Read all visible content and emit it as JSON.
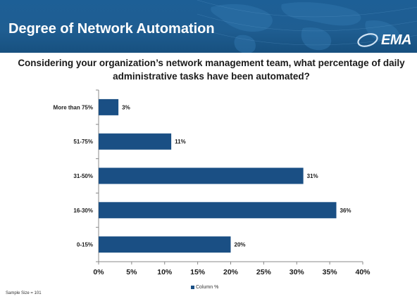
{
  "slide": {
    "title": "Degree of Network Automation",
    "logo": "EMA",
    "footnote": "Sample Size = 101"
  },
  "colors": {
    "header": "#1f5e92",
    "bar": "#1a4f84"
  },
  "chart_data": {
    "type": "bar",
    "orientation": "horizontal",
    "title": "Considering your organization’s network management team, what percentage of daily administrative tasks have been automated?",
    "categories": [
      "More than 75%",
      "51-75%",
      "31-50%",
      "16-30%",
      "0-15%"
    ],
    "series": [
      {
        "name": "Column %",
        "values": [
          3,
          11,
          31,
          36,
          20
        ]
      }
    ],
    "data_labels": [
      "3%",
      "11%",
      "31%",
      "36%",
      "20%"
    ],
    "xlim": [
      0,
      40
    ],
    "xticks": [
      "0%",
      "5%",
      "10%",
      "15%",
      "20%",
      "25%",
      "30%",
      "35%",
      "40%"
    ],
    "grid": false,
    "legend_position": "bottom"
  }
}
